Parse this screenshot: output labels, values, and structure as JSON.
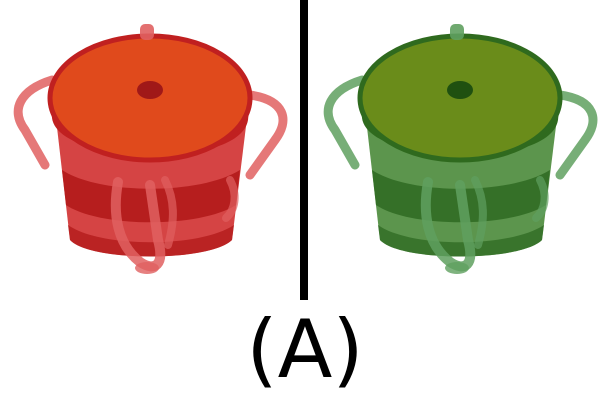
{
  "caption": "(A)",
  "objects": [
    {
      "icon": "bucket-icon",
      "colors": {
        "lid": "#e04a1c",
        "rim": "#c02020",
        "body_light": "#d03030",
        "body_dark": "#b01818",
        "handle": "#e06060",
        "hole": "#a01818"
      }
    },
    {
      "icon": "bucket-icon",
      "colors": {
        "lid": "#6a8c1a",
        "rim": "#2f6a1e",
        "body_light": "#4a8a3a",
        "body_dark": "#2e6a22",
        "handle": "#5fa05f",
        "hole": "#1f5010"
      }
    }
  ]
}
